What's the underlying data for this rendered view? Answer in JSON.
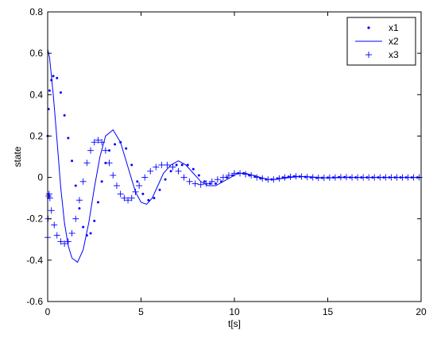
{
  "chart_data": {
    "type": "line",
    "xlabel": "t[s]",
    "ylabel": "state",
    "xlim": [
      0,
      20
    ],
    "ylim": [
      -0.6,
      0.8
    ],
    "xticks": [
      0,
      5,
      10,
      15,
      20
    ],
    "xtick_labels": [
      "0",
      "5",
      "10",
      "15",
      "20"
    ],
    "yticks": [
      -0.6,
      -0.4,
      -0.2,
      0,
      0.2,
      0.4,
      0.6,
      0.8
    ],
    "ytick_labels": [
      "-0.6",
      "-0.4",
      "-0.2",
      "0",
      "0.2",
      "0.4",
      "0.6",
      "0.8"
    ],
    "grid": false,
    "legend_position": "top-right",
    "color": "#0000ff",
    "series": [
      {
        "name": "x1",
        "style": "dots",
        "points": [
          [
            0,
            0.2
          ],
          [
            0.05,
            0.33
          ],
          [
            0.1,
            0.42
          ],
          [
            0.2,
            0.47
          ],
          [
            0.3,
            0.49
          ],
          [
            0.5,
            0.48
          ],
          [
            0.7,
            0.41
          ],
          [
            0.9,
            0.3
          ],
          [
            1.1,
            0.19
          ],
          [
            1.3,
            0.08
          ],
          [
            1.5,
            -0.04
          ],
          [
            1.7,
            -0.15
          ],
          [
            1.9,
            -0.24
          ],
          [
            2.1,
            -0.28
          ],
          [
            2.3,
            -0.27
          ],
          [
            2.5,
            -0.21
          ],
          [
            2.7,
            -0.12
          ],
          [
            2.9,
            -0.02
          ],
          [
            3.1,
            0.07
          ],
          [
            3.3,
            0.13
          ],
          [
            3.6,
            0.16
          ],
          [
            3.9,
            0.17
          ],
          [
            4.2,
            0.14
          ],
          [
            4.5,
            0.06
          ],
          [
            4.8,
            -0.02
          ],
          [
            5.1,
            -0.08
          ],
          [
            5.4,
            -0.11
          ],
          [
            5.7,
            -0.1
          ],
          [
            6.0,
            -0.06
          ],
          [
            6.3,
            -0.01
          ],
          [
            6.6,
            0.03
          ],
          [
            6.9,
            0.06
          ],
          [
            7.2,
            0.06
          ],
          [
            7.5,
            0.06
          ],
          [
            7.8,
            0.04
          ],
          [
            8.1,
            0.01
          ],
          [
            8.4,
            -0.02
          ],
          [
            8.7,
            -0.03
          ],
          [
            9.0,
            -0.03
          ],
          [
            9.3,
            -0.02
          ],
          [
            9.6,
            0.0
          ],
          [
            9.9,
            0.01
          ],
          [
            10.2,
            0.02
          ],
          [
            10.5,
            0.02
          ],
          [
            10.8,
            0.01
          ],
          [
            11.1,
            0.005
          ],
          [
            11.4,
            -0.005
          ],
          [
            11.7,
            -0.01
          ],
          [
            12.0,
            -0.01
          ],
          [
            12.3,
            -0.005
          ],
          [
            12.6,
            0.0
          ],
          [
            12.9,
            0.003
          ],
          [
            13.2,
            0.005
          ],
          [
            13.5,
            0.004
          ],
          [
            13.8,
            0.002
          ],
          [
            14.1,
            0.0
          ],
          [
            14.4,
            -0.002
          ],
          [
            14.7,
            -0.002
          ],
          [
            15.0,
            -0.001
          ],
          [
            15.3,
            0.0
          ],
          [
            15.6,
            0.001
          ],
          [
            15.9,
            0.001
          ],
          [
            16.2,
            0.0
          ],
          [
            16.5,
            0.0
          ],
          [
            16.8,
            0.0
          ],
          [
            17.1,
            0.0
          ],
          [
            17.4,
            0.0
          ],
          [
            17.7,
            0.0
          ],
          [
            18.0,
            0.0
          ],
          [
            18.3,
            0.0
          ],
          [
            18.6,
            0.0
          ],
          [
            18.9,
            0.0
          ],
          [
            19.2,
            0.0
          ],
          [
            19.5,
            0.0
          ],
          [
            19.8,
            0.0
          ]
        ]
      },
      {
        "name": "x2",
        "style": "line",
        "points": [
          [
            0,
            0.62
          ],
          [
            0.1,
            0.58
          ],
          [
            0.3,
            0.4
          ],
          [
            0.5,
            0.18
          ],
          [
            0.7,
            -0.05
          ],
          [
            0.9,
            -0.22
          ],
          [
            1.1,
            -0.33
          ],
          [
            1.3,
            -0.39
          ],
          [
            1.6,
            -0.41
          ],
          [
            1.9,
            -0.35
          ],
          [
            2.2,
            -0.22
          ],
          [
            2.5,
            -0.05
          ],
          [
            2.8,
            0.1
          ],
          [
            3.1,
            0.2
          ],
          [
            3.5,
            0.23
          ],
          [
            3.9,
            0.17
          ],
          [
            4.3,
            0.05
          ],
          [
            4.7,
            -0.07
          ],
          [
            5.0,
            -0.12
          ],
          [
            5.3,
            -0.13
          ],
          [
            5.6,
            -0.1
          ],
          [
            5.9,
            -0.04
          ],
          [
            6.2,
            0.02
          ],
          [
            6.6,
            0.06
          ],
          [
            7.0,
            0.08
          ],
          [
            7.4,
            0.06
          ],
          [
            7.8,
            0.02
          ],
          [
            8.2,
            -0.02
          ],
          [
            8.6,
            -0.04
          ],
          [
            9.0,
            -0.04
          ],
          [
            9.4,
            -0.02
          ],
          [
            9.8,
            0.0
          ],
          [
            10.2,
            0.02
          ],
          [
            10.6,
            0.02
          ],
          [
            11.0,
            0.01
          ],
          [
            11.4,
            0.0
          ],
          [
            11.8,
            -0.01
          ],
          [
            12.2,
            -0.01
          ],
          [
            12.6,
            -0.005
          ],
          [
            13.0,
            0.0
          ],
          [
            13.5,
            0.004
          ],
          [
            14.0,
            0.003
          ],
          [
            14.5,
            0.0
          ],
          [
            15.0,
            -0.002
          ],
          [
            15.5,
            -0.001
          ],
          [
            16.0,
            0.0
          ],
          [
            17.0,
            0.0
          ],
          [
            18.0,
            0.0
          ],
          [
            19.0,
            0.0
          ],
          [
            20.0,
            0.0
          ]
        ]
      },
      {
        "name": "x3",
        "style": "plus",
        "points": [
          [
            0,
            -0.29
          ],
          [
            0.02,
            -0.2
          ],
          [
            0.05,
            -0.09
          ],
          [
            0.08,
            -0.08
          ],
          [
            0.12,
            -0.1
          ],
          [
            0.2,
            -0.16
          ],
          [
            0.35,
            -0.23
          ],
          [
            0.5,
            -0.28
          ],
          [
            0.7,
            -0.31
          ],
          [
            0.9,
            -0.32
          ],
          [
            1.1,
            -0.31
          ],
          [
            1.3,
            -0.27
          ],
          [
            1.5,
            -0.2
          ],
          [
            1.7,
            -0.11
          ],
          [
            1.9,
            -0.02
          ],
          [
            2.1,
            0.07
          ],
          [
            2.3,
            0.13
          ],
          [
            2.5,
            0.17
          ],
          [
            2.7,
            0.18
          ],
          [
            2.9,
            0.17
          ],
          [
            3.1,
            0.13
          ],
          [
            3.3,
            0.07
          ],
          [
            3.5,
            0.01
          ],
          [
            3.7,
            -0.04
          ],
          [
            3.9,
            -0.08
          ],
          [
            4.1,
            -0.1
          ],
          [
            4.3,
            -0.11
          ],
          [
            4.5,
            -0.1
          ],
          [
            4.7,
            -0.07
          ],
          [
            4.9,
            -0.04
          ],
          [
            5.2,
            0.0
          ],
          [
            5.5,
            0.03
          ],
          [
            5.8,
            0.05
          ],
          [
            6.1,
            0.06
          ],
          [
            6.4,
            0.06
          ],
          [
            6.7,
            0.05
          ],
          [
            7.0,
            0.03
          ],
          [
            7.3,
            0.0
          ],
          [
            7.6,
            -0.02
          ],
          [
            7.9,
            -0.03
          ],
          [
            8.2,
            -0.035
          ],
          [
            8.5,
            -0.03
          ],
          [
            8.8,
            -0.02
          ],
          [
            9.1,
            -0.01
          ],
          [
            9.4,
            0.0
          ],
          [
            9.7,
            0.01
          ],
          [
            10.0,
            0.02
          ],
          [
            10.3,
            0.02
          ],
          [
            10.6,
            0.015
          ],
          [
            10.9,
            0.01
          ],
          [
            11.2,
            0.0
          ],
          [
            11.5,
            -0.005
          ],
          [
            11.8,
            -0.01
          ],
          [
            12.1,
            -0.01
          ],
          [
            12.4,
            -0.005
          ],
          [
            12.7,
            0.0
          ],
          [
            13.0,
            0.003
          ],
          [
            13.3,
            0.005
          ],
          [
            13.6,
            0.004
          ],
          [
            13.9,
            0.002
          ],
          [
            14.2,
            0.0
          ],
          [
            14.5,
            -0.002
          ],
          [
            14.8,
            -0.002
          ],
          [
            15.1,
            -0.001
          ],
          [
            15.4,
            0.0
          ],
          [
            15.7,
            0.001
          ],
          [
            16.0,
            0.001
          ],
          [
            16.3,
            0.0
          ],
          [
            16.6,
            0.0
          ],
          [
            16.9,
            0.0
          ],
          [
            17.2,
            0.0
          ],
          [
            17.5,
            0.0
          ],
          [
            17.8,
            0.0
          ],
          [
            18.1,
            0.0
          ],
          [
            18.4,
            0.0
          ],
          [
            18.7,
            0.0
          ],
          [
            19.0,
            0.0
          ],
          [
            19.3,
            0.0
          ],
          [
            19.6,
            0.0
          ],
          [
            19.9,
            0.0
          ]
        ]
      }
    ]
  }
}
